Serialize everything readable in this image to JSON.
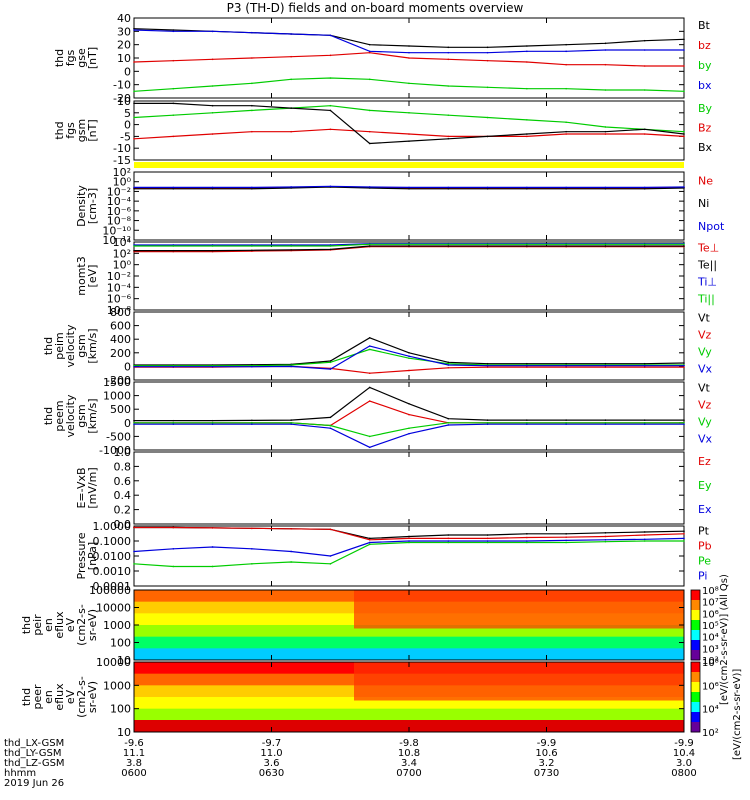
{
  "title": "P3 (TH-D) fields and on-board moments overview",
  "colors": {
    "black": "#000000",
    "red": "#e00000",
    "green": "#00cc00",
    "blue": "#0000dd",
    "yellow": "#ffff00"
  },
  "panels": [
    {
      "id": "fgs-gse",
      "ylabel": [
        "thd",
        "fgs",
        "gse",
        "[nT]"
      ],
      "ticks": [
        "40",
        "30",
        "20",
        "10",
        "0",
        "-10",
        "-20"
      ],
      "legend": [
        {
          "text": "Bt",
          "color": "black"
        },
        {
          "text": "bz",
          "color": "red"
        },
        {
          "text": "by",
          "color": "green"
        },
        {
          "text": "bx",
          "color": "blue"
        }
      ]
    },
    {
      "id": "fgs-gsm",
      "ylabel": [
        "thd",
        "fgs",
        "gsm",
        "[nT]"
      ],
      "ticks": [
        "10",
        "5",
        "0",
        "-5",
        "-10",
        "-15"
      ],
      "legend": [
        {
          "text": "By",
          "color": "green"
        },
        {
          "text": "Bz",
          "color": "red"
        },
        {
          "text": "Bx",
          "color": "black"
        }
      ]
    },
    {
      "id": "density",
      "ylabel": [
        "Density",
        "[cm-3]"
      ],
      "ticks": [
        "10²",
        "10⁰",
        "10⁻²",
        "10⁻⁴",
        "10⁻⁶",
        "10⁻⁸",
        "10⁻¹⁰",
        "10⁻¹²"
      ],
      "legend": [
        {
          "text": "Ne",
          "color": "red"
        },
        {
          "text": "Ni",
          "color": "black"
        },
        {
          "text": "Npot",
          "color": "blue"
        }
      ]
    },
    {
      "id": "temp",
      "ylabel": [
        "momt3",
        "[eV]"
      ],
      "ticks": [
        "10⁴",
        "10²",
        "10⁰",
        "10⁻²",
        "10⁻⁴",
        "10⁻⁶",
        "10⁻⁸"
      ],
      "legend": [
        {
          "text": "Te⊥",
          "color": "red"
        },
        {
          "text": "Te||",
          "color": "black"
        },
        {
          "text": "Ti⊥",
          "color": "blue"
        },
        {
          "text": "Ti||",
          "color": "green"
        }
      ]
    },
    {
      "id": "peim-vel",
      "ylabel": [
        "thd",
        "peim",
        "velocity",
        "gsm",
        "[km/s]"
      ],
      "ticks": [
        "800",
        "600",
        "400",
        "200",
        "0",
        "-200"
      ],
      "legend": [
        {
          "text": "Vt",
          "color": "black"
        },
        {
          "text": "Vz",
          "color": "red"
        },
        {
          "text": "Vy",
          "color": "green"
        },
        {
          "text": "Vx",
          "color": "blue"
        }
      ]
    },
    {
      "id": "peem-vel",
      "ylabel": [
        "thd",
        "peem",
        "velocity",
        "gsm",
        "[km/s]"
      ],
      "ticks": [
        "1500",
        "1000",
        "500",
        "0",
        "-500",
        "-1000"
      ],
      "legend": [
        {
          "text": "Vt",
          "color": "black"
        },
        {
          "text": "Vz",
          "color": "red"
        },
        {
          "text": "Vy",
          "color": "green"
        },
        {
          "text": "Vx",
          "color": "blue"
        }
      ]
    },
    {
      "id": "efield",
      "ylabel": [
        "E=-VxB",
        "[mV/m]"
      ],
      "ticks": [
        "1.0",
        "0.8",
        "0.6",
        "0.4",
        "0.2",
        "0.0"
      ],
      "legend": [
        {
          "text": "Ez",
          "color": "red"
        },
        {
          "text": "Ey",
          "color": "green"
        },
        {
          "text": "Ex",
          "color": "blue"
        }
      ]
    },
    {
      "id": "pressure",
      "ylabel": [
        "Pressure",
        "[nPa]"
      ],
      "ticks": [
        "1.0000",
        "0.1000",
        "0.0100",
        "0.0010",
        "0.0001"
      ],
      "legend": [
        {
          "text": "Pt",
          "color": "black"
        },
        {
          "text": "Pb",
          "color": "red"
        },
        {
          "text": "Pe",
          "color": "green"
        },
        {
          "text": "Pi",
          "color": "blue"
        }
      ]
    },
    {
      "id": "peir-spec",
      "ylabel": [
        "thd",
        "peir",
        "en",
        "eflux",
        "eV",
        "(cm2-s-",
        "sr-eV)"
      ],
      "ticks": [
        "100000",
        "10000",
        "1000",
        "100",
        "10"
      ],
      "cbar": [
        "10⁸",
        "10⁷",
        "10⁶",
        "10⁵",
        "10⁴",
        "10³",
        "10²"
      ]
    },
    {
      "id": "peer-spec",
      "ylabel": [
        "thd",
        "peer",
        "en",
        "eflux",
        "eV",
        "(cm2-s-",
        "sr-eV)"
      ],
      "ticks": [
        "10000",
        "1000",
        "100",
        "10"
      ],
      "cbar": [
        "10⁸",
        "10⁶",
        "10⁴",
        "10²"
      ]
    }
  ],
  "cbar_labels": [
    "[eV/(cm2-s-sr-eV)] (All Qs)",
    "[eV/(cm2-s-sr-eV)]"
  ],
  "orbit_table": {
    "rows": [
      {
        "label": "thd_LX-GSM",
        "values": [
          "-9.6",
          "-9.7",
          "-9.8",
          "-9.9",
          "-9.9"
        ]
      },
      {
        "label": "thd_LY-GSM",
        "values": [
          "11.1",
          "11.0",
          "10.8",
          "10.6",
          "10.4"
        ]
      },
      {
        "label": "thd_LZ-GSM",
        "values": [
          "3.8",
          "3.6",
          "3.4",
          "3.2",
          "3.0"
        ]
      },
      {
        "label": "hhmm",
        "values": [
          "0600",
          "0630",
          "0700",
          "0730",
          "0800"
        ]
      }
    ],
    "date": "2019 Jun 26"
  },
  "chart_data": [
    {
      "type": "line",
      "panel": "fgs-gse",
      "x_range": [
        "0600",
        "0800"
      ],
      "ylim": [
        -20,
        40
      ],
      "series": [
        {
          "name": "Bt",
          "values": [
            32,
            31,
            30,
            29,
            28,
            27,
            20,
            19,
            18,
            18,
            19,
            20,
            21,
            23,
            24
          ]
        },
        {
          "name": "bz",
          "values": [
            7,
            8,
            9,
            10,
            11,
            12,
            14,
            10,
            9,
            8,
            7,
            5,
            5,
            4,
            4
          ]
        },
        {
          "name": "by",
          "values": [
            -15,
            -13,
            -11,
            -9,
            -6,
            -5,
            -6,
            -9,
            -11,
            -12,
            -13,
            -13,
            -14,
            -14,
            -15
          ]
        },
        {
          "name": "bx",
          "values": [
            31,
            30,
            30,
            29,
            28,
            27,
            15,
            14,
            14,
            14,
            15,
            15,
            16,
            16,
            16
          ]
        }
      ]
    },
    {
      "type": "line",
      "panel": "fgs-gsm",
      "x_range": [
        "0600",
        "0800"
      ],
      "ylim": [
        -15,
        10
      ],
      "series": [
        {
          "name": "By",
          "values": [
            3,
            4,
            5,
            6,
            7,
            8,
            6,
            5,
            4,
            3,
            2,
            1,
            -1,
            -2,
            -3
          ]
        },
        {
          "name": "Bz",
          "values": [
            -6,
            -5,
            -4,
            -3,
            -3,
            -2,
            -3,
            -4,
            -5,
            -5,
            -5,
            -4,
            -4,
            -4,
            -5
          ]
        },
        {
          "name": "Bx",
          "values": [
            9,
            9,
            8,
            8,
            7,
            6,
            -8,
            -7,
            -6,
            -5,
            -4,
            -3,
            -3,
            -2,
            -4
          ]
        }
      ]
    },
    {
      "type": "line",
      "panel": "density",
      "x_range": [
        "0600",
        "0800"
      ],
      "scale": "log",
      "ylim": [
        1e-12,
        1000.0
      ],
      "series": [
        {
          "name": "Ne",
          "values": [
            0.3,
            0.3,
            0.3,
            0.3,
            0.4,
            0.6,
            0.4,
            0.3,
            0.3,
            0.3,
            0.3,
            0.3,
            0.3,
            0.3,
            0.4
          ]
        },
        {
          "name": "Ni",
          "values": [
            0.2,
            0.2,
            0.2,
            0.2,
            0.3,
            0.5,
            0.3,
            0.2,
            0.2,
            0.2,
            0.2,
            0.2,
            0.2,
            0.2,
            0.3
          ]
        },
        {
          "name": "Npot",
          "values": [
            0.4,
            0.4,
            0.4,
            0.4,
            0.5,
            0.7,
            0.5,
            0.4,
            0.4,
            0.4,
            0.4,
            0.4,
            0.4,
            0.4,
            0.5
          ]
        }
      ]
    },
    {
      "type": "line",
      "panel": "temp",
      "x_range": [
        "0600",
        "0800"
      ],
      "scale": "log",
      "ylim": [
        1e-08,
        10000.0
      ],
      "series": [
        {
          "name": "Te⊥",
          "values": [
            200,
            200,
            200,
            250,
            300,
            400,
            1500,
            1500,
            1500,
            1500,
            1500,
            1500,
            1500,
            1500,
            1500
          ]
        },
        {
          "name": "Te||",
          "values": [
            300,
            300,
            300,
            350,
            400,
            500,
            2000,
            2000,
            2000,
            2000,
            2000,
            2000,
            2000,
            2000,
            2000
          ]
        },
        {
          "name": "Ti⊥",
          "values": [
            3000,
            3000,
            3000,
            3000,
            3000,
            3000,
            5000,
            5000,
            5000,
            5000,
            5000,
            5000,
            5000,
            5000,
            5000
          ]
        },
        {
          "name": "Ti||",
          "values": [
            2000,
            2000,
            2000,
            2000,
            2000,
            2000,
            4000,
            4000,
            4000,
            4000,
            4000,
            4000,
            4000,
            4000,
            4000
          ]
        }
      ]
    },
    {
      "type": "line",
      "panel": "peim-vel",
      "x_range": [
        "0600",
        "0800"
      ],
      "ylim": [
        -200,
        800
      ],
      "series": [
        {
          "name": "Vt",
          "values": [
            20,
            20,
            20,
            25,
            30,
            80,
            420,
            200,
            60,
            40,
            40,
            40,
            40,
            40,
            50
          ]
        },
        {
          "name": "Vz",
          "values": [
            -10,
            -10,
            -10,
            -5,
            0,
            -30,
            -100,
            -60,
            -20,
            -10,
            -10,
            -10,
            -10,
            -10,
            -10
          ]
        },
        {
          "name": "Vy",
          "values": [
            10,
            10,
            10,
            10,
            20,
            60,
            250,
            120,
            40,
            20,
            20,
            20,
            20,
            20,
            20
          ]
        },
        {
          "name": "Vx",
          "values": [
            -5,
            -5,
            -5,
            -5,
            0,
            -40,
            300,
            150,
            20,
            10,
            10,
            10,
            10,
            10,
            10
          ]
        }
      ]
    },
    {
      "type": "line",
      "panel": "peem-vel",
      "x_range": [
        "0600",
        "0800"
      ],
      "ylim": [
        -1000,
        1500
      ],
      "series": [
        {
          "name": "Vt",
          "values": [
            80,
            80,
            80,
            90,
            100,
            200,
            1300,
            700,
            150,
            100,
            100,
            100,
            100,
            100,
            100
          ]
        },
        {
          "name": "Vz",
          "values": [
            0,
            0,
            0,
            0,
            0,
            -100,
            800,
            300,
            0,
            0,
            0,
            0,
            0,
            0,
            0
          ]
        },
        {
          "name": "Vy",
          "values": [
            0,
            0,
            0,
            0,
            0,
            -100,
            -500,
            -200,
            0,
            0,
            0,
            0,
            0,
            0,
            0
          ]
        },
        {
          "name": "Vx",
          "values": [
            -50,
            -50,
            -50,
            -50,
            -50,
            -200,
            -900,
            -400,
            -80,
            -50,
            -50,
            -50,
            -50,
            -50,
            -50
          ]
        }
      ]
    },
    {
      "type": "line",
      "panel": "efield",
      "x_range": [
        "0600",
        "0800"
      ],
      "ylim": [
        0,
        1
      ],
      "series": []
    },
    {
      "type": "line",
      "panel": "pressure",
      "x_range": [
        "0600",
        "0800"
      ],
      "scale": "log",
      "ylim": [
        0.0001,
        1
      ],
      "series": [
        {
          "name": "Pt",
          "values": [
            0.8,
            0.8,
            0.75,
            0.7,
            0.65,
            0.6,
            0.15,
            0.2,
            0.25,
            0.25,
            0.3,
            0.3,
            0.35,
            0.4,
            0.45
          ]
        },
        {
          "name": "Pb",
          "values": [
            0.8,
            0.8,
            0.75,
            0.7,
            0.65,
            0.6,
            0.12,
            0.15,
            0.15,
            0.15,
            0.17,
            0.18,
            0.2,
            0.25,
            0.3
          ]
        },
        {
          "name": "Pe",
          "values": [
            0.003,
            0.002,
            0.002,
            0.003,
            0.004,
            0.003,
            0.06,
            0.08,
            0.08,
            0.08,
            0.08,
            0.08,
            0.09,
            0.1,
            0.1
          ]
        },
        {
          "name": "Pi",
          "values": [
            0.02,
            0.03,
            0.04,
            0.03,
            0.02,
            0.01,
            0.08,
            0.1,
            0.1,
            0.1,
            0.1,
            0.11,
            0.12,
            0.13,
            0.15
          ]
        }
      ]
    },
    {
      "type": "heatmap",
      "panel": "peir-spec",
      "x_range": [
        "0600",
        "0800"
      ],
      "scale": "log",
      "ylim": [
        10,
        100000
      ]
    },
    {
      "type": "heatmap",
      "panel": "peer-spec",
      "x_range": [
        "0600",
        "0800"
      ],
      "scale": "log",
      "ylim": [
        10,
        10000
      ]
    }
  ]
}
